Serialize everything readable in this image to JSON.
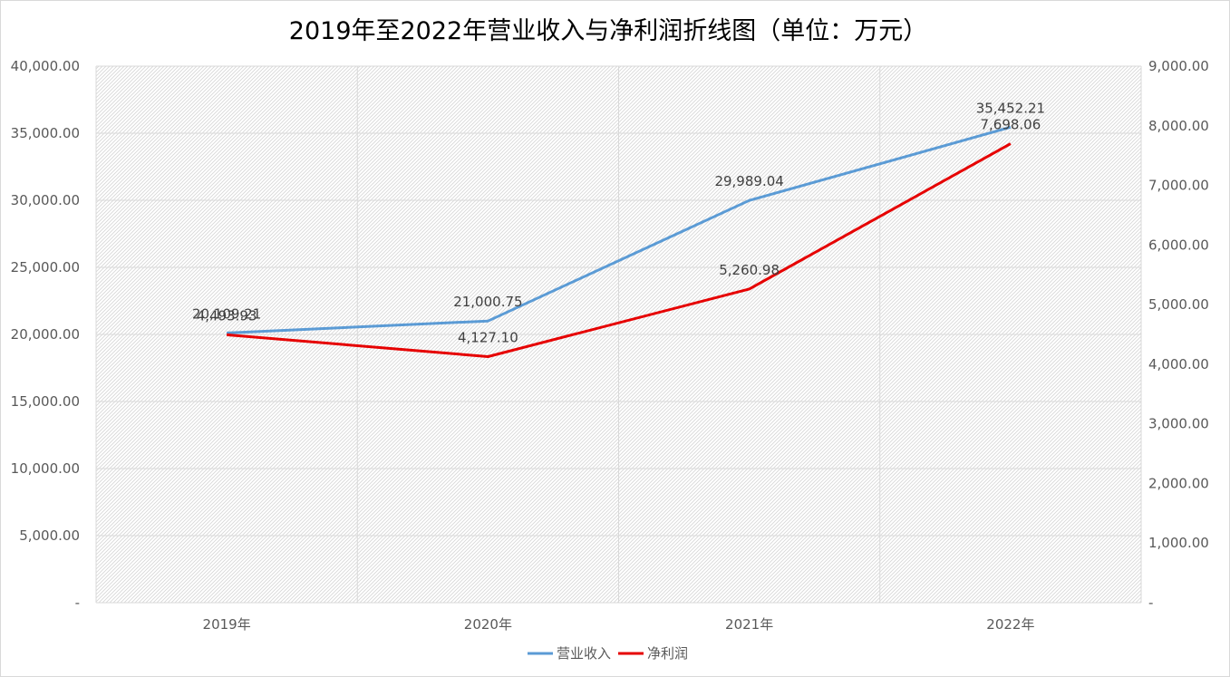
{
  "chart_data": {
    "type": "line",
    "title": "2019年至2022年营业收入与净利润折线图（单位：万元）",
    "categories": [
      "2019年",
      "2020年",
      "2021年",
      "2022年"
    ],
    "series": [
      {
        "name": "营业收入",
        "axis": "left",
        "color": "#5b9bd5",
        "values": [
          20109.21,
          21000.75,
          29989.04,
          35452.21
        ],
        "labels": [
          "20,109.21",
          "21,000.75",
          "29,989.04",
          "35,452.21"
        ]
      },
      {
        "name": "净利润",
        "axis": "right",
        "color": "#e60000",
        "values": [
          4493.93,
          4127.1,
          5260.98,
          7698.06
        ],
        "labels": [
          "4,493.93",
          "4,127.10",
          "5,260.98",
          "7,698.06"
        ]
      }
    ],
    "y_left": {
      "min": 0,
      "max": 40000,
      "ticks": [
        "-",
        "5,000.00",
        "10,000.00",
        "15,000.00",
        "20,000.00",
        "25,000.00",
        "30,000.00",
        "35,000.00",
        "40,000.00"
      ]
    },
    "y_right": {
      "min": 0,
      "max": 9000,
      "ticks": [
        "-",
        "1,000.00",
        "2,000.00",
        "3,000.00",
        "4,000.00",
        "5,000.00",
        "6,000.00",
        "7,000.00",
        "8,000.00",
        "9,000.00"
      ]
    },
    "grid": true,
    "legend_position": "bottom"
  }
}
